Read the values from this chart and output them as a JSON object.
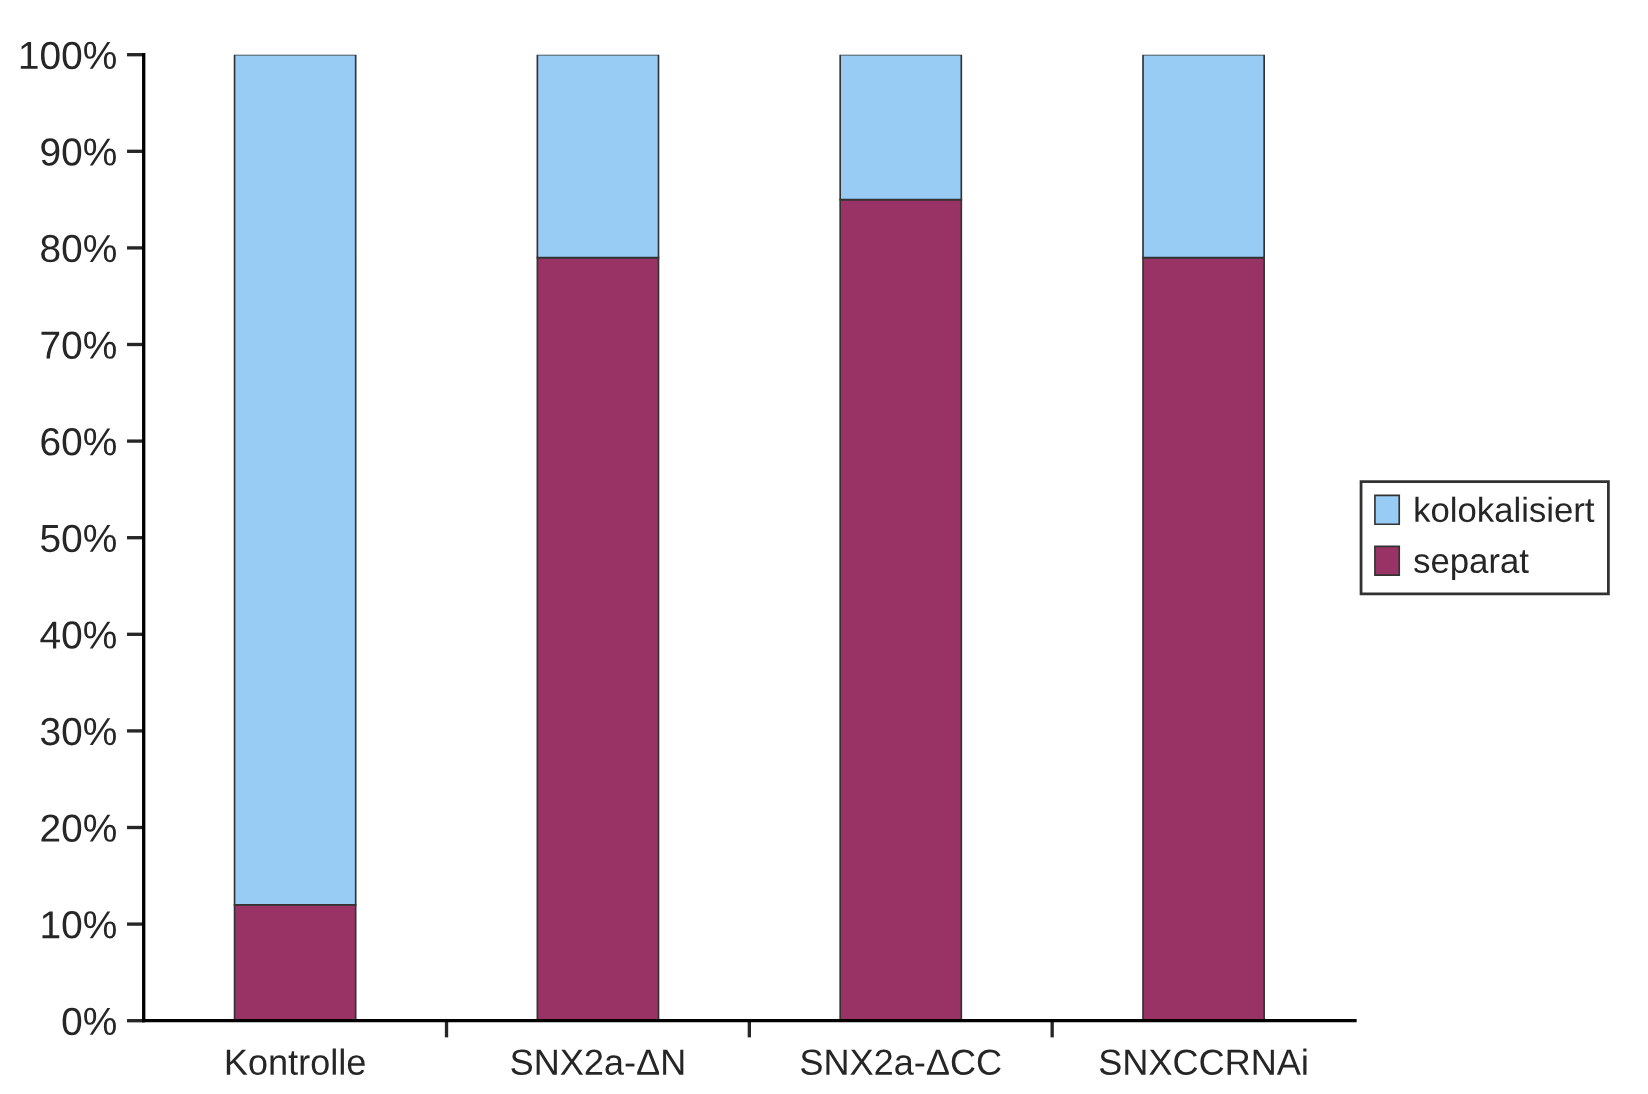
{
  "chart_data": {
    "type": "bar",
    "stacked": true,
    "categories": [
      "Kontrolle",
      "SNX2a-ΔN",
      "SNX2a-ΔCC",
      "SNXCCRNAi"
    ],
    "series": [
      {
        "name": "separat",
        "color": "#993366",
        "values": [
          12,
          79,
          85,
          79
        ]
      },
      {
        "name": "kolokalisiert",
        "color": "#99ccf5",
        "values": [
          88,
          21,
          15,
          21
        ]
      }
    ],
    "ylim": [
      0,
      100
    ],
    "yticks": [
      {
        "value": 0,
        "label": "0%"
      },
      {
        "value": 10,
        "label": "10%"
      },
      {
        "value": 20,
        "label": "20%"
      },
      {
        "value": 30,
        "label": "30%"
      },
      {
        "value": 40,
        "label": "40%"
      },
      {
        "value": 50,
        "label": "50%"
      },
      {
        "value": 60,
        "label": "60%"
      },
      {
        "value": 70,
        "label": "70%"
      },
      {
        "value": 80,
        "label": "80%"
      },
      {
        "value": 90,
        "label": "90%"
      },
      {
        "value": 100,
        "label": "100%"
      }
    ],
    "grid": false,
    "legend": "right"
  }
}
